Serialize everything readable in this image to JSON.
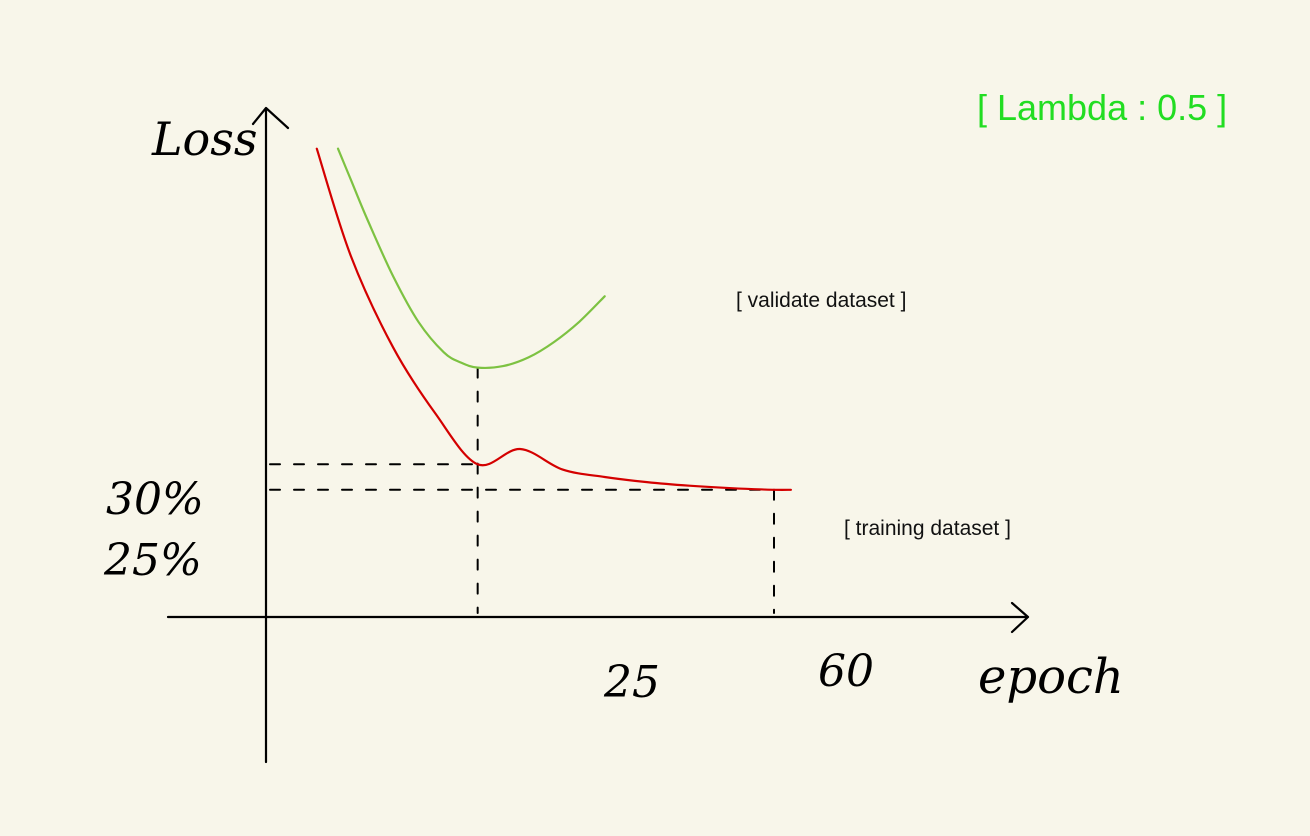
{
  "chart_data": {
    "type": "line",
    "title": "",
    "annotation": "[ Lambda : 0.5 ]",
    "xlabel": "epoch",
    "ylabel": "Loss",
    "x_ticks": [
      "25",
      "60"
    ],
    "y_ticks": [
      "30%",
      "25%"
    ],
    "xlim": [
      0,
      90
    ],
    "ylim": [
      0,
      100
    ],
    "colors": {
      "training": "#d40000",
      "validate": "#7dc242",
      "annotation": "#22dd22"
    },
    "series": [
      {
        "name": "[ training dataset ]",
        "color": "#d40000",
        "x": [
          6,
          10,
          15,
          20,
          25,
          30,
          35,
          40,
          45,
          50,
          55,
          60,
          62
        ],
        "y": [
          92,
          71,
          53,
          40,
          30,
          33,
          29,
          27.5,
          26.5,
          25.8,
          25.3,
          25.0,
          25.0
        ]
      },
      {
        "name": "[ validate dataset ]",
        "color": "#7dc242",
        "x": [
          8.5,
          10,
          12,
          15,
          18,
          21,
          23,
          25,
          28,
          31,
          34,
          37,
          40
        ],
        "y": [
          92,
          86,
          78,
          67,
          58,
          52,
          50,
          49,
          49.3,
          51,
          54,
          58,
          63
        ]
      }
    ],
    "guides": [
      {
        "type": "horizontal",
        "y": 30,
        "x_end": 25
      },
      {
        "type": "horizontal",
        "y": 25,
        "x_end": 60
      },
      {
        "type": "vertical",
        "x": 25,
        "y_end": 49
      },
      {
        "type": "vertical",
        "x": 60,
        "y_end": 25
      }
    ]
  }
}
